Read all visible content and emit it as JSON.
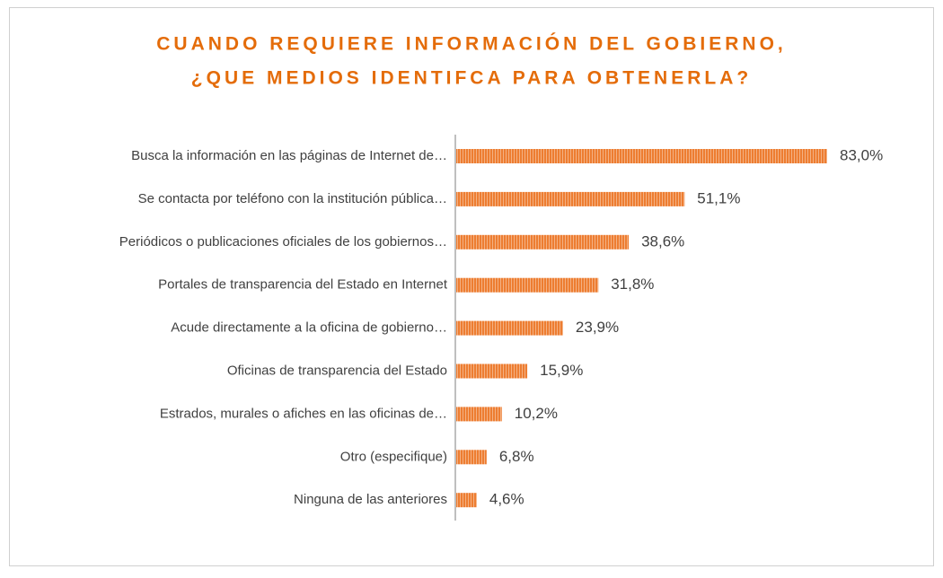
{
  "chart_data": {
    "type": "bar",
    "orientation": "horizontal",
    "title": [
      "CUANDO REQUIERE INFORMACIÓN DEL GOBIERNO,",
      "¿QUE MEDIOS IDENTIFCA PARA OBTENERLA?"
    ],
    "categories": [
      "Busca la información en las páginas de Internet de…",
      "Se contacta por teléfono con la institución pública…",
      "Periódicos o publicaciones oficiales de los gobiernos…",
      "Portales de transparencia del Estado en Internet",
      "Acude directamente a la oficina de gobierno…",
      "Oficinas de transparencia del Estado",
      "Estrados, murales o afiches en las oficinas de…",
      "Otro (especifique)",
      "Ninguna de las anteriores"
    ],
    "values": [
      83.0,
      51.1,
      38.6,
      31.8,
      23.9,
      15.9,
      10.2,
      6.8,
      4.6
    ],
    "value_labels": [
      "83,0%",
      "51,1%",
      "38,6%",
      "31,8%",
      "23,9%",
      "15,9%",
      "10,2%",
      "6,8%",
      "4,6%"
    ],
    "color": "#ed7d31"
  }
}
